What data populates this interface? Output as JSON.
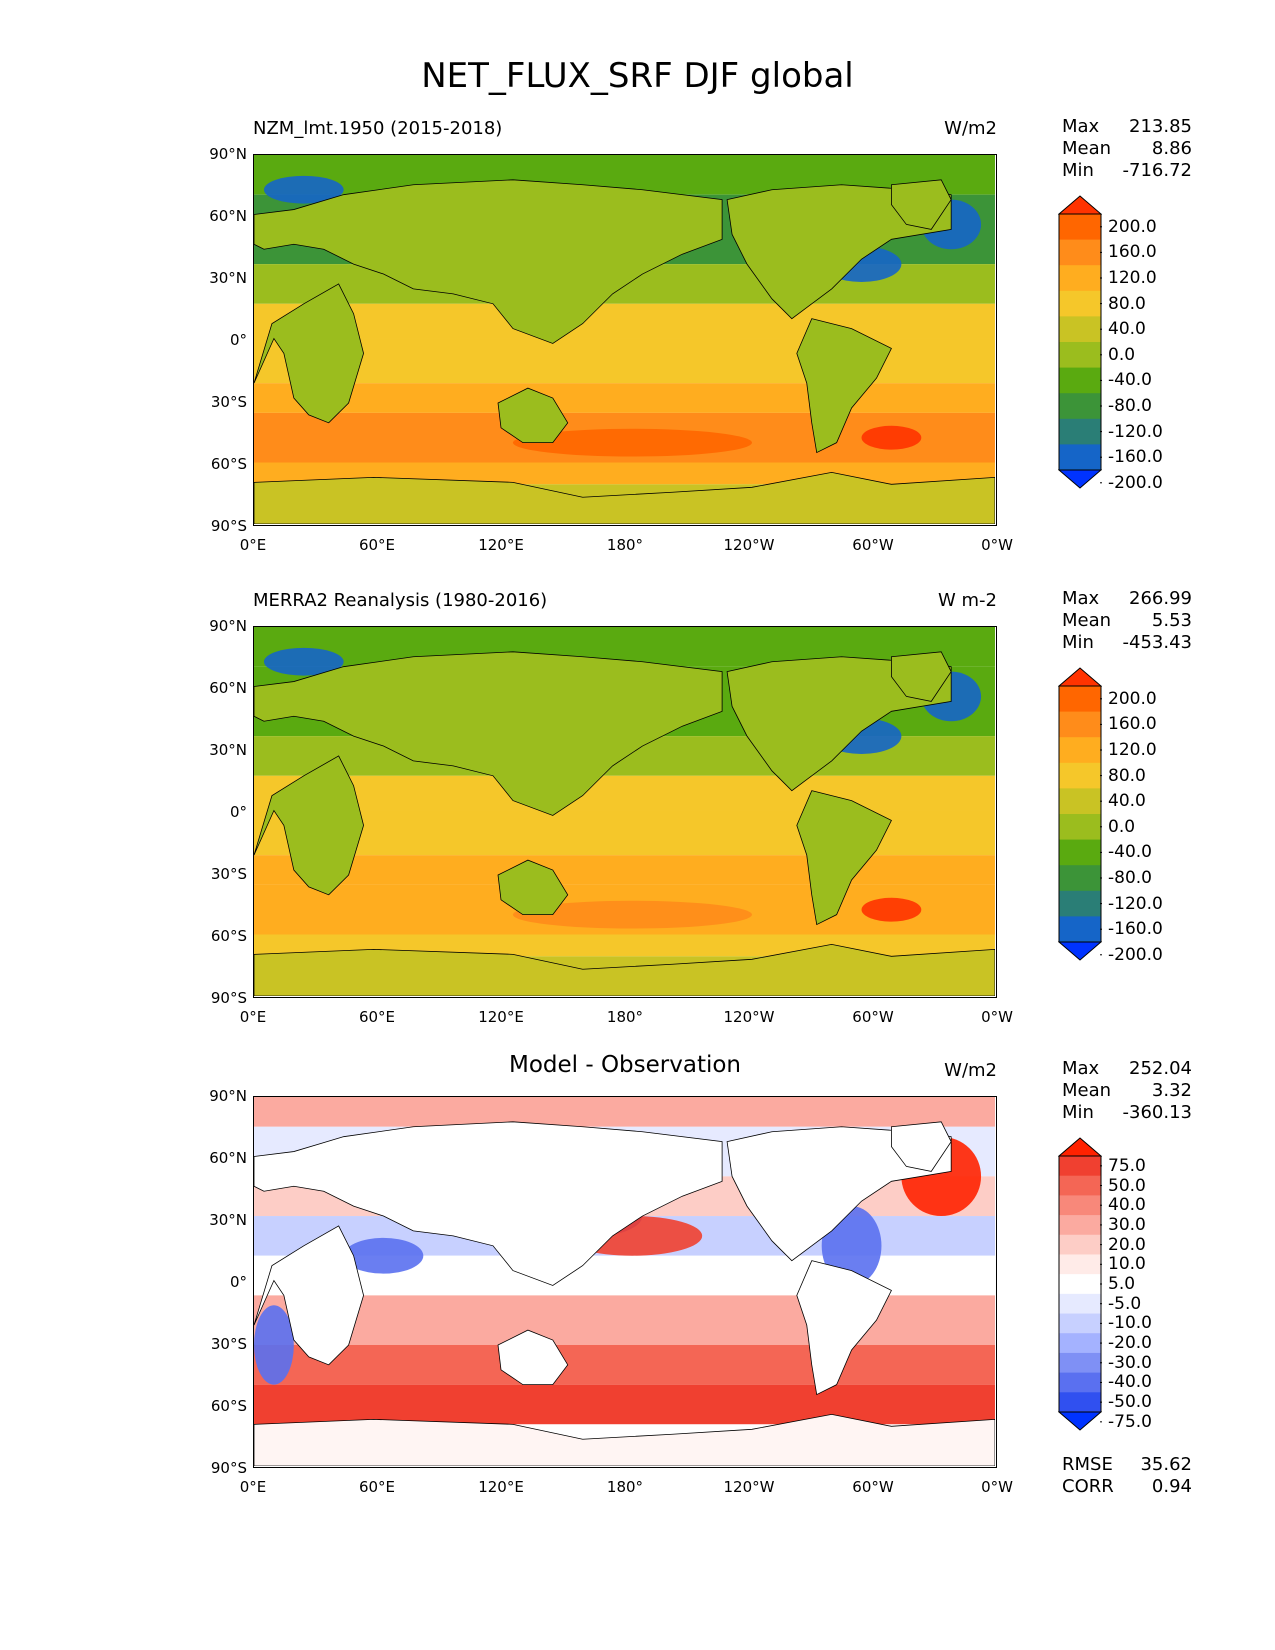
{
  "figure_title": "NET_FLUX_SRF DJF global",
  "lat_labels": [
    "90°N",
    "60°N",
    "30°N",
    "0°",
    "30°S",
    "60°S",
    "90°S"
  ],
  "lon_labels": [
    "0°E",
    "60°E",
    "120°E",
    "180°",
    "120°W",
    "60°W",
    "0°W"
  ],
  "panels": [
    {
      "left_title": "NZM_lmt.1950 (2015-2018)",
      "center_title": "",
      "units": "W/m2",
      "stats": {
        "max_label": "Max",
        "max": "213.85",
        "mean_label": "Mean",
        "mean": "8.86",
        "min_label": "Min",
        "min": "-716.72"
      },
      "colorbar_labels": [
        "200.0",
        "160.0",
        "120.0",
        "80.0",
        "40.0",
        "0.0",
        "-40.0",
        "-80.0",
        "-120.0",
        "-160.0",
        "-200.0"
      ],
      "colorbar_colors": [
        "#ff3300",
        "#ff6600",
        "#ff8c1a",
        "#ffad1f",
        "#f5c72a",
        "#c9c324",
        "#9bbd1e",
        "#5aaa10",
        "#3c9438",
        "#2a7e76",
        "#1565c8",
        "#0033ff"
      ]
    },
    {
      "left_title": "MERRA2 Reanalysis (1980-2016)",
      "center_title": "",
      "units": "W m-2",
      "stats": {
        "max_label": "Max",
        "max": "266.99",
        "mean_label": "Mean",
        "mean": "5.53",
        "min_label": "Min",
        "min": "-453.43"
      },
      "colorbar_labels": [
        "200.0",
        "160.0",
        "120.0",
        "80.0",
        "40.0",
        "0.0",
        "-40.0",
        "-80.0",
        "-120.0",
        "-160.0",
        "-200.0"
      ],
      "colorbar_colors": [
        "#ff3300",
        "#ff6600",
        "#ff8c1a",
        "#ffad1f",
        "#f5c72a",
        "#c9c324",
        "#9bbd1e",
        "#5aaa10",
        "#3c9438",
        "#2a7e76",
        "#1565c8",
        "#0033ff"
      ]
    },
    {
      "left_title": "",
      "center_title": "Model - Observation",
      "units": "W/m2",
      "stats": {
        "max_label": "Max",
        "max": "252.04",
        "mean_label": "Mean",
        "mean": "3.32",
        "min_label": "Min",
        "min": "-360.13"
      },
      "colorbar_labels": [
        "75.0",
        "50.0",
        "40.0",
        "30.0",
        "20.0",
        "10.0",
        "5.0",
        "-5.0",
        "-10.0",
        "-20.0",
        "-30.0",
        "-40.0",
        "-50.0",
        "-75.0"
      ],
      "colorbar_colors": [
        "#ff2200",
        "#f04030",
        "#f46655",
        "#f8887a",
        "#fbaaa0",
        "#fdcdc6",
        "#ffebe8",
        "#ffffff",
        "#e6eaff",
        "#c7d0ff",
        "#a4b2ff",
        "#7f90f5",
        "#5a70f0",
        "#3050f0",
        "#0033ff"
      ],
      "extra_stats": {
        "rmse_label": "RMSE",
        "rmse": "35.62",
        "corr_label": "CORR",
        "corr": "0.94"
      }
    }
  ]
}
